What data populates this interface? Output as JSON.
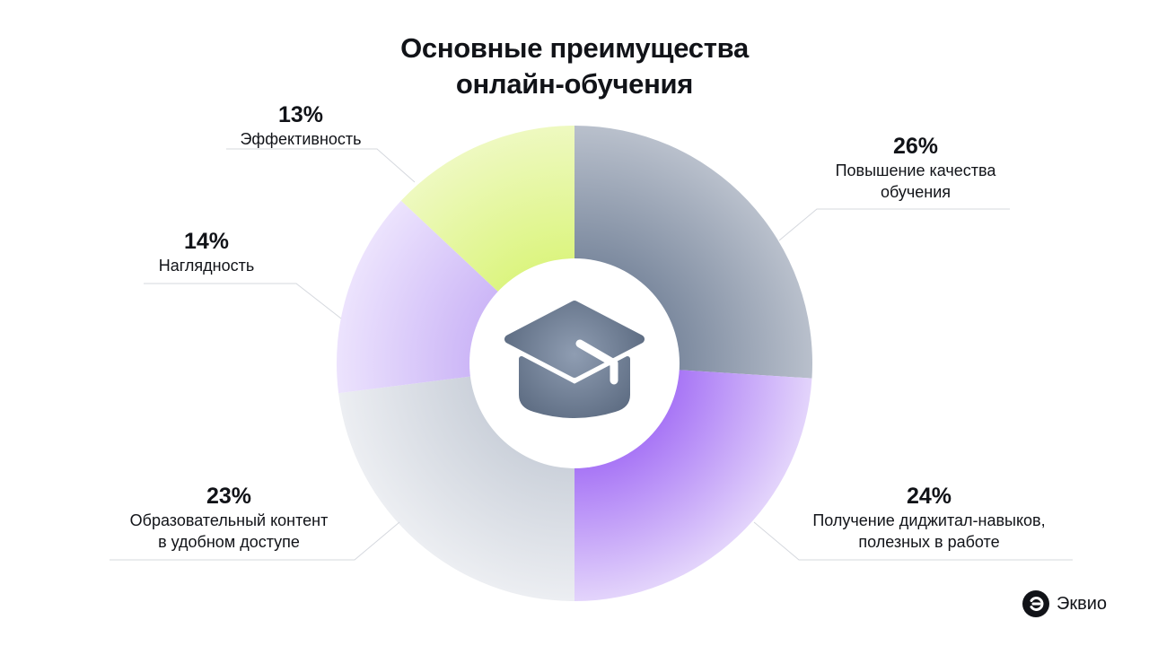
{
  "chart_data": {
    "type": "pie",
    "title_lines": [
      "Основные преимущества",
      "онлайн-обучения"
    ],
    "slices": [
      {
        "pct_label": "26%",
        "value": 26,
        "label_lines": [
          "Повышение качества",
          "обучения"
        ],
        "color": "#6b7a8e"
      },
      {
        "pct_label": "24%",
        "value": 24,
        "label_lines": [
          "Получение диджитал-навыков,",
          "полезных в работе"
        ],
        "color": "#9a62f5"
      },
      {
        "pct_label": "23%",
        "value": 23,
        "label_lines": [
          "Образовательный контент",
          "в удобном доступе"
        ],
        "color": "#c3c9d4"
      },
      {
        "pct_label": "14%",
        "value": 14,
        "label_lines": [
          "Наглядность"
        ],
        "color": "#cbb6f5"
      },
      {
        "pct_label": "13%",
        "value": 13,
        "label_lines": [
          "Эффективность"
        ],
        "color": "#d9f57a"
      }
    ],
    "center_icon": "graduation-cap-icon"
  },
  "brand": {
    "name": "Эквио",
    "icon": "ekvio-logo-icon"
  }
}
